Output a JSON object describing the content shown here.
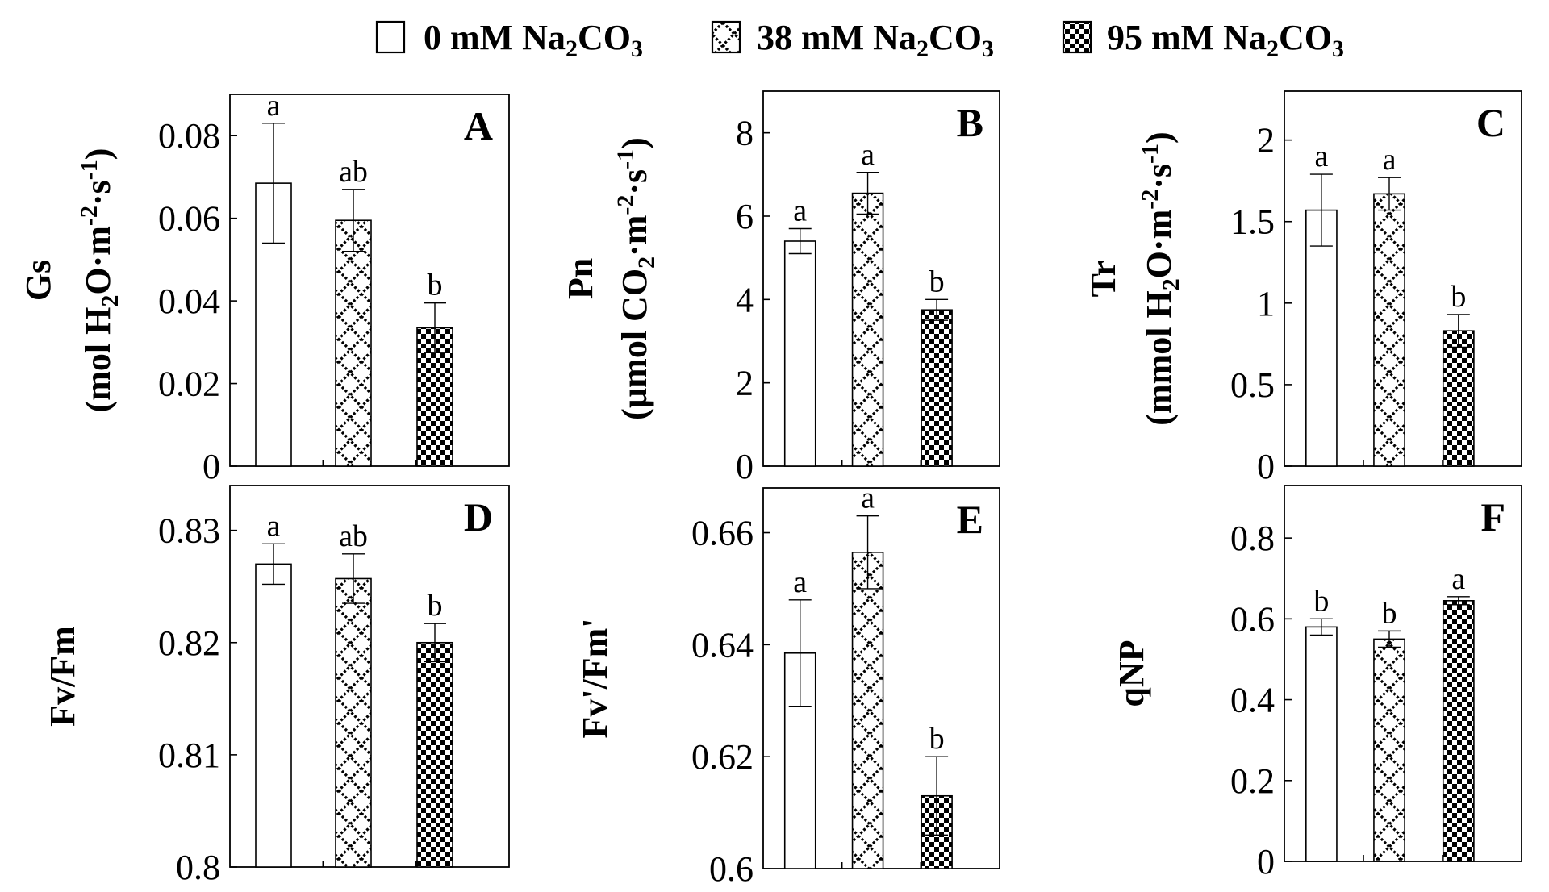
{
  "legend": {
    "items": [
      {
        "name": "0 mM Na2CO3",
        "pattern": "open",
        "parts": [
          "0 mM Na",
          "2",
          "CO",
          "3"
        ]
      },
      {
        "name": "38 mM Na2CO3",
        "pattern": "diamond",
        "parts": [
          "38 mM Na",
          "2",
          "CO",
          "3"
        ]
      },
      {
        "name": "95 mM Na2CO3",
        "pattern": "checker",
        "parts": [
          "95 mM Na",
          "2",
          "CO",
          "3"
        ]
      }
    ]
  },
  "colors": {
    "bar_stroke": "#000000",
    "pattern_dark": "#000000",
    "background": "#ffffff"
  },
  "chart_data": [
    {
      "type": "bar",
      "panel": "A",
      "title_parts": {
        "main": "Gs",
        "unit": [
          [
            "(mol H",
            ""
          ],
          [
            "2",
            "sub"
          ],
          [
            "O·m",
            ""
          ],
          [
            "-2",
            "sup"
          ],
          [
            "·s",
            ""
          ],
          [
            "-1",
            "sup"
          ],
          [
            ")",
            ""
          ]
        ]
      },
      "categories": [
        "0 mM Na2CO3",
        "38 mM Na2CO3",
        "95 mM Na2CO3"
      ],
      "values": [
        0.0685,
        0.0595,
        0.0335
      ],
      "errors": [
        0.0145,
        0.0075,
        0.006
      ],
      "sig_labels": [
        "a",
        "ab",
        "b"
      ],
      "ylim": [
        0,
        0.09
      ],
      "ticks": [
        0,
        0.02,
        0.04,
        0.06,
        0.08
      ],
      "tick_labels": [
        "0",
        "0.02",
        "0.04",
        "0.06",
        "0.08"
      ]
    },
    {
      "type": "bar",
      "panel": "B",
      "title_parts": {
        "main": "Pn",
        "unit": [
          [
            "(µmol CO",
            ""
          ],
          [
            "2",
            "sub"
          ],
          [
            "·m",
            ""
          ],
          [
            "-2",
            "sup"
          ],
          [
            "·s",
            ""
          ],
          [
            "-1",
            "sup"
          ],
          [
            ")",
            ""
          ]
        ]
      },
      "categories": [
        "0 mM Na2CO3",
        "38 mM Na2CO3",
        "95 mM Na2CO3"
      ],
      "values": [
        5.4,
        6.55,
        3.75
      ],
      "errors": [
        0.3,
        0.5,
        0.25
      ],
      "sig_labels": [
        "a",
        "a",
        "b"
      ],
      "ylim": [
        0,
        9
      ],
      "ticks": [
        0,
        2,
        4,
        6,
        8
      ],
      "tick_labels": [
        "0",
        "2",
        "4",
        "6",
        "8"
      ]
    },
    {
      "type": "bar",
      "panel": "C",
      "title_parts": {
        "main": "Tr",
        "unit": [
          [
            "(mmol H",
            ""
          ],
          [
            "2",
            "sub"
          ],
          [
            "O·m",
            ""
          ],
          [
            "-2",
            "sup"
          ],
          [
            "·s",
            ""
          ],
          [
            "-1",
            "sup"
          ],
          [
            ")",
            ""
          ]
        ]
      },
      "categories": [
        "0 mM Na2CO3",
        "38 mM Na2CO3",
        "95 mM Na2CO3"
      ],
      "values": [
        1.57,
        1.67,
        0.83
      ],
      "errors": [
        0.22,
        0.1,
        0.1
      ],
      "sig_labels": [
        "a",
        "a",
        "b"
      ],
      "ylim": [
        0,
        2.3
      ],
      "ticks": [
        0,
        0.5,
        1,
        1.5,
        2
      ],
      "tick_labels": [
        "0",
        "0.5",
        "1",
        "1.5",
        "2"
      ]
    },
    {
      "type": "bar",
      "panel": "D",
      "title_parts": {
        "main": "Fv/Fm",
        "unit": []
      },
      "categories": [
        "0 mM Na2CO3",
        "38 mM Na2CO3",
        "95 mM Na2CO3"
      ],
      "values": [
        0.827,
        0.8257,
        0.82
      ],
      "errors": [
        0.0018,
        0.0022,
        0.0017
      ],
      "sig_labels": [
        "a",
        "ab",
        "b"
      ],
      "ylim": [
        0.8,
        0.834
      ],
      "ticks": [
        0.8,
        0.81,
        0.82,
        0.83
      ],
      "tick_labels": [
        "0.8",
        "0.81",
        "0.82",
        "0.83"
      ]
    },
    {
      "type": "bar",
      "panel": "E",
      "title_parts": {
        "main": "Fv'/Fm'",
        "unit": []
      },
      "categories": [
        "0 mM Na2CO3",
        "38 mM Na2CO3",
        "95 mM Na2CO3"
      ],
      "values": [
        0.6385,
        0.6565,
        0.613
      ],
      "errors": [
        0.0095,
        0.0065,
        0.007
      ],
      "sig_labels": [
        "a",
        "a",
        "b"
      ],
      "ylim": [
        0.6,
        0.668
      ],
      "ticks": [
        0.6,
        0.62,
        0.64,
        0.66
      ],
      "tick_labels": [
        "0.6",
        "0.62",
        "0.64",
        "0.66"
      ]
    },
    {
      "type": "bar",
      "panel": "F",
      "title_parts": {
        "main": "qNP",
        "unit": []
      },
      "categories": [
        "0 mM Na2CO3",
        "38 mM Na2CO3",
        "95 mM Na2CO3"
      ],
      "values": [
        0.58,
        0.55,
        0.645
      ],
      "errors": [
        0.02,
        0.02,
        0.01
      ],
      "sig_labels": [
        "b",
        "b",
        "a"
      ],
      "ylim": [
        0,
        0.93
      ],
      "ticks": [
        0,
        0.2,
        0.4,
        0.6,
        0.8
      ],
      "tick_labels": [
        "0",
        "0.2",
        "0.4",
        "0.6",
        "0.8"
      ]
    }
  ]
}
